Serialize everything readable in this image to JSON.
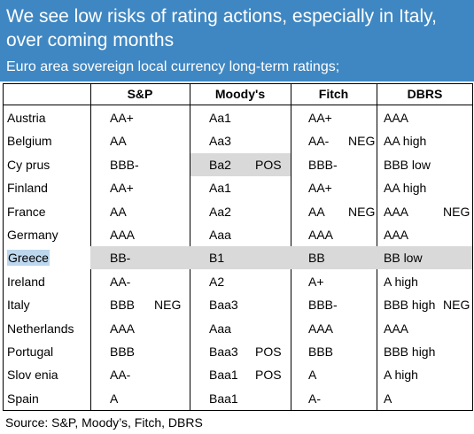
{
  "header": {
    "title": "We see low risks of rating actions, especially in Italy, over coming months",
    "subtitle": "Euro area sovereign local currency long-term ratings;"
  },
  "columns": [
    "S&P",
    "Moody's",
    "Fitch",
    "DBRS"
  ],
  "rows": [
    {
      "country": "Austria",
      "sp": "AA+",
      "sp_o": "",
      "moodys": "Aa1",
      "moodys_o": "",
      "fitch": "AA+",
      "fitch_o": "",
      "dbrs": "AAA",
      "dbrs_o": ""
    },
    {
      "country": "Belgium",
      "sp": "AA",
      "sp_o": "",
      "moodys": "Aa3",
      "moodys_o": "",
      "fitch": "AA-",
      "fitch_o": "NEG",
      "dbrs": "AA high",
      "dbrs_o": ""
    },
    {
      "country": "Cy prus",
      "sp": "BBB-",
      "sp_o": "",
      "moodys": "Ba2",
      "moodys_o": "POS",
      "fitch": "BBB-",
      "fitch_o": "",
      "dbrs": "BBB low",
      "dbrs_o": ""
    },
    {
      "country": "Finland",
      "sp": "AA+",
      "sp_o": "",
      "moodys": "Aa1",
      "moodys_o": "",
      "fitch": "AA+",
      "fitch_o": "",
      "dbrs": "AA high",
      "dbrs_o": ""
    },
    {
      "country": "France",
      "sp": "AA",
      "sp_o": "",
      "moodys": "Aa2",
      "moodys_o": "",
      "fitch": "AA",
      "fitch_o": "NEG",
      "dbrs": "AAA",
      "dbrs_o": "NEG"
    },
    {
      "country": "Germany",
      "sp": "AAA",
      "sp_o": "",
      "moodys": "Aaa",
      "moodys_o": "",
      "fitch": "AAA",
      "fitch_o": "",
      "dbrs": "AAA",
      "dbrs_o": ""
    },
    {
      "country": "Greece",
      "sp": "BB-",
      "sp_o": "",
      "moodys": "B1",
      "moodys_o": "",
      "fitch": "BB",
      "fitch_o": "",
      "dbrs": "BB low",
      "dbrs_o": ""
    },
    {
      "country": "Ireland",
      "sp": "AA-",
      "sp_o": "",
      "moodys": "A2",
      "moodys_o": "",
      "fitch": "A+",
      "fitch_o": "",
      "dbrs": "A high",
      "dbrs_o": ""
    },
    {
      "country": "Italy",
      "sp": "BBB",
      "sp_o": "NEG",
      "moodys": "Baa3",
      "moodys_o": "",
      "fitch": "BBB-",
      "fitch_o": "",
      "dbrs": "BBB high",
      "dbrs_o": "NEG"
    },
    {
      "country": "Netherlands",
      "sp": "AAA",
      "sp_o": "",
      "moodys": "Aaa",
      "moodys_o": "",
      "fitch": "AAA",
      "fitch_o": "",
      "dbrs": "AAA",
      "dbrs_o": ""
    },
    {
      "country": "Portugal",
      "sp": "BBB",
      "sp_o": "",
      "moodys": "Baa3",
      "moodys_o": "POS",
      "fitch": "BBB",
      "fitch_o": "",
      "dbrs": "BBB high",
      "dbrs_o": ""
    },
    {
      "country": "Slov enia",
      "sp": "AA-",
      "sp_o": "",
      "moodys": "Baa1",
      "moodys_o": "POS",
      "fitch": "A",
      "fitch_o": "",
      "dbrs": "A high",
      "dbrs_o": ""
    },
    {
      "country": "Spain",
      "sp": "A",
      "sp_o": "",
      "moodys": "Baa1",
      "moodys_o": "",
      "fitch": "A-",
      "fitch_o": "",
      "dbrs": "A",
      "dbrs_o": ""
    }
  ],
  "source": "Source: S&P, Moody’s, Fitch, DBRS",
  "colors": {
    "header_bg": "#3f87c2",
    "highlight": "#d9d9d9",
    "country_highlight": "#bdd7ee"
  }
}
